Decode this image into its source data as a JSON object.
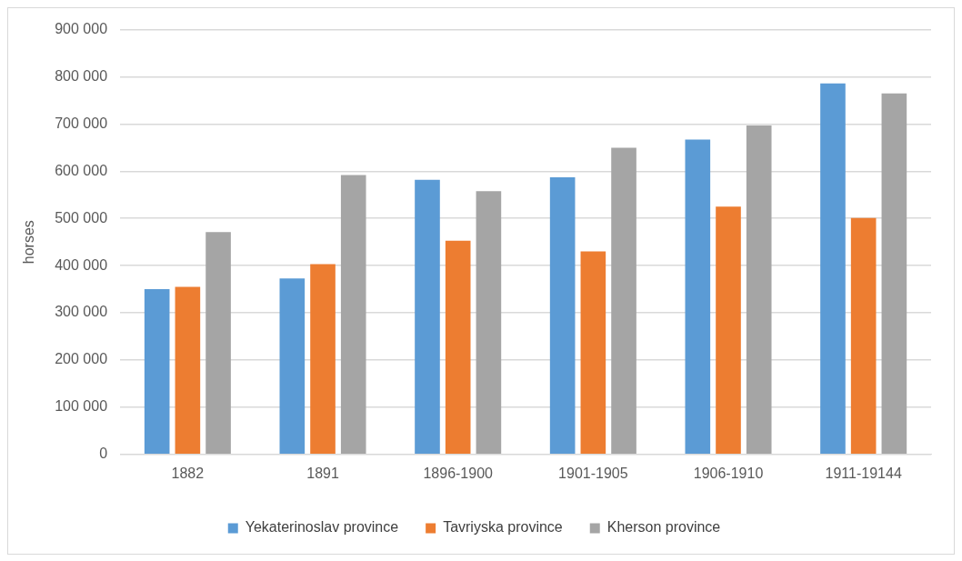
{
  "chart_data": {
    "type": "bar",
    "ylabel": "horses",
    "categories": [
      "1882",
      "1891",
      "1896-1900",
      "1901-1905",
      "1906-1910",
      "1911-19144"
    ],
    "series": [
      {
        "name": "Yekaterinoslav province",
        "color": "#5b9bd5",
        "values": [
          350000,
          373000,
          582000,
          587000,
          667000,
          786000
        ]
      },
      {
        "name": "Tavriyska province",
        "color": "#ed7d31",
        "values": [
          355000,
          403000,
          453000,
          430000,
          525000,
          501000
        ]
      },
      {
        "name": "Kherson province",
        "color": "#a5a5a5",
        "values": [
          471000,
          592000,
          558000,
          650000,
          697000,
          765000
        ]
      }
    ],
    "ylim": [
      0,
      900000
    ],
    "yticks": [
      {
        "value": 0,
        "label": "0"
      },
      {
        "value": 100000,
        "label": "100 000"
      },
      {
        "value": 200000,
        "label": "200 000"
      },
      {
        "value": 300000,
        "label": "300 000"
      },
      {
        "value": 400000,
        "label": "400 000"
      },
      {
        "value": 500000,
        "label": "500 000"
      },
      {
        "value": 600000,
        "label": "600 000"
      },
      {
        "value": 700000,
        "label": "700 000"
      },
      {
        "value": 800000,
        "label": "800 000"
      },
      {
        "value": 900000,
        "label": "900 000"
      }
    ],
    "grid": "y",
    "legend": "bottom"
  }
}
